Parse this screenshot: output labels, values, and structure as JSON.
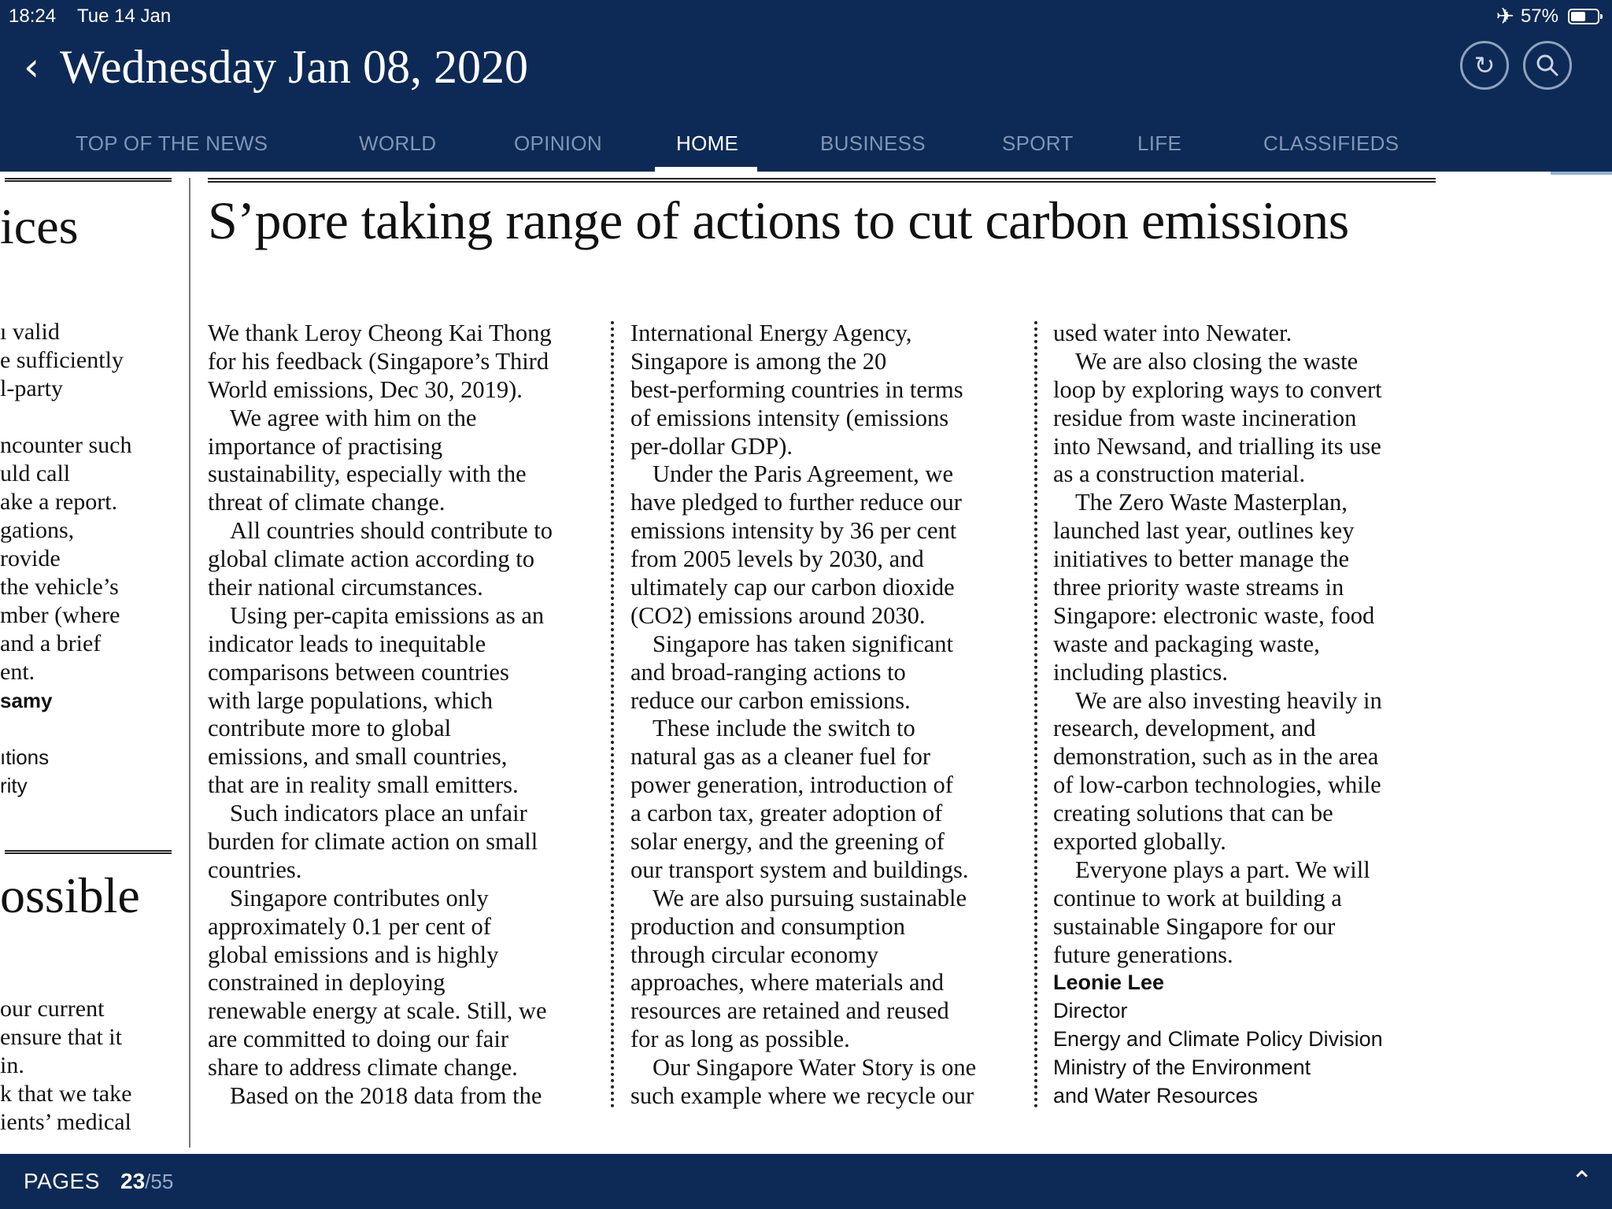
{
  "status_bar": {
    "time": "18:24",
    "date": "Tue 14 Jan",
    "battery_percent": "57%",
    "battery_level": 0.57,
    "airplane_icon": "airplane-icon"
  },
  "header": {
    "back_icon": "chevron-left-icon",
    "edition_date": "Wednesday Jan 08, 2020",
    "refresh_icon": "refresh-icon",
    "search_icon": "search-icon",
    "background_color": "#0d2a57"
  },
  "tabs": [
    {
      "label": "TOP OF THE NEWS",
      "active": false
    },
    {
      "label": "WORLD",
      "active": false
    },
    {
      "label": "OPINION",
      "active": false
    },
    {
      "label": "HOME",
      "active": true
    },
    {
      "label": "BUSINESS",
      "active": false
    },
    {
      "label": "SPORT",
      "active": false
    },
    {
      "label": "LIFE",
      "active": false
    },
    {
      "label": "CLASSIFIEDS",
      "active": false
    }
  ],
  "left_article": {
    "headline_top": "ices",
    "lines_top": [
      "ı valid",
      "e sufficiently",
      "l-party",
      "",
      "ncounter such",
      "uld call",
      "ake a report.",
      "gations,",
      "rovide",
      " the vehicle’s",
      "mber (where",
      " and a brief",
      "ent."
    ],
    "byline_name": "samy",
    "byline_lines": [
      "",
      "ıtions",
      "rity"
    ],
    "headline_bottom": "ossible",
    "lines_bottom": [
      "our current",
      "ensure that it",
      " in.",
      "k that we take",
      "ients’ medical"
    ]
  },
  "article": {
    "headline": "S’pore taking range of actions to cut carbon emissions",
    "columns": [
      [
        {
          "text": "We thank Leroy Cheong Kai Thong",
          "indent": false
        },
        {
          "text": "for his feedback (Singapore’s Third",
          "indent": false
        },
        {
          "text": "World emissions, Dec 30, 2019).",
          "indent": false
        },
        {
          "text": "We agree with him on the",
          "indent": true
        },
        {
          "text": "importance of practising",
          "indent": false
        },
        {
          "text": "sustainability, especially with the",
          "indent": false
        },
        {
          "text": "threat of climate change.",
          "indent": false
        },
        {
          "text": "All countries should contribute to",
          "indent": true
        },
        {
          "text": "global climate action according to",
          "indent": false
        },
        {
          "text": "their national circumstances.",
          "indent": false
        },
        {
          "text": "Using per-capita emissions as an",
          "indent": true
        },
        {
          "text": "indicator leads to inequitable",
          "indent": false
        },
        {
          "text": "comparisons between countries",
          "indent": false
        },
        {
          "text": "with large populations, which",
          "indent": false
        },
        {
          "text": "contribute more to global",
          "indent": false
        },
        {
          "text": "emissions, and small countries,",
          "indent": false
        },
        {
          "text": "that are in reality small emitters.",
          "indent": false
        },
        {
          "text": "Such indicators place an unfair",
          "indent": true
        },
        {
          "text": "burden for climate action on small",
          "indent": false
        },
        {
          "text": "countries.",
          "indent": false
        },
        {
          "text": "Singapore contributes only",
          "indent": true
        },
        {
          "text": "approximately 0.1 per cent of",
          "indent": false
        },
        {
          "text": "global emissions and is highly",
          "indent": false
        },
        {
          "text": "constrained in deploying",
          "indent": false
        },
        {
          "text": "renewable energy at scale. Still, we",
          "indent": false
        },
        {
          "text": "are committed to doing our fair",
          "indent": false
        },
        {
          "text": "share to address climate change.",
          "indent": false
        },
        {
          "text": "Based on the 2018 data from the",
          "indent": true
        }
      ],
      [
        {
          "text": "International Energy Agency,",
          "indent": false
        },
        {
          "text": "Singapore is among the 20",
          "indent": false
        },
        {
          "text": "best-performing countries in terms",
          "indent": false
        },
        {
          "text": "of emissions intensity (emissions",
          "indent": false
        },
        {
          "text": "per-dollar GDP).",
          "indent": false
        },
        {
          "text": "Under the Paris Agreement, we",
          "indent": true
        },
        {
          "text": "have pledged to further reduce our",
          "indent": false
        },
        {
          "text": "emissions intensity by 36 per cent",
          "indent": false
        },
        {
          "text": "from 2005 levels by 2030, and",
          "indent": false
        },
        {
          "text": "ultimately cap our carbon dioxide",
          "indent": false
        },
        {
          "text": "(CO2) emissions around 2030.",
          "indent": false
        },
        {
          "text": "Singapore has taken significant",
          "indent": true
        },
        {
          "text": "and broad-ranging actions to",
          "indent": false
        },
        {
          "text": "reduce our carbon emissions.",
          "indent": false
        },
        {
          "text": "These include the switch to",
          "indent": true
        },
        {
          "text": "natural gas as a cleaner fuel for",
          "indent": false
        },
        {
          "text": "power generation, introduction of",
          "indent": false
        },
        {
          "text": "a carbon tax, greater adoption of",
          "indent": false
        },
        {
          "text": "solar energy, and the greening of",
          "indent": false
        },
        {
          "text": "our transport system and buildings.",
          "indent": false
        },
        {
          "text": "We are also pursuing sustainable",
          "indent": true
        },
        {
          "text": "production and consumption",
          "indent": false
        },
        {
          "text": "through circular economy",
          "indent": false
        },
        {
          "text": "approaches, where materials and",
          "indent": false
        },
        {
          "text": "resources are retained and reused",
          "indent": false
        },
        {
          "text": "for as long as possible.",
          "indent": false
        },
        {
          "text": "Our Singapore Water Story is one",
          "indent": true
        },
        {
          "text": "such example where we recycle our",
          "indent": false
        }
      ],
      [
        {
          "text": "used water into Newater.",
          "indent": false
        },
        {
          "text": "We are also closing the waste",
          "indent": true
        },
        {
          "text": "loop by exploring ways to convert",
          "indent": false
        },
        {
          "text": "residue from waste incineration",
          "indent": false
        },
        {
          "text": "into Newsand, and trialling its use",
          "indent": false
        },
        {
          "text": "as a construction material.",
          "indent": false
        },
        {
          "text": "The Zero Waste Masterplan,",
          "indent": true
        },
        {
          "text": "launched last year, outlines key",
          "indent": false
        },
        {
          "text": "initiatives to better manage the",
          "indent": false
        },
        {
          "text": "three priority waste streams in",
          "indent": false
        },
        {
          "text": "Singapore: electronic waste, food",
          "indent": false
        },
        {
          "text": "waste and packaging waste,",
          "indent": false
        },
        {
          "text": "including plastics.",
          "indent": false
        },
        {
          "text": "We are also investing heavily in",
          "indent": true
        },
        {
          "text": "research, development, and",
          "indent": false
        },
        {
          "text": "demonstration, such as in the area",
          "indent": false
        },
        {
          "text": "of low-carbon technologies, while",
          "indent": false
        },
        {
          "text": "creating solutions that can be",
          "indent": false
        },
        {
          "text": "exported globally.",
          "indent": false
        },
        {
          "text": "Everyone plays a part. We will",
          "indent": true
        },
        {
          "text": "continue to work at building a",
          "indent": false
        },
        {
          "text": "sustainable Singapore for our",
          "indent": false
        },
        {
          "text": "future generations.",
          "indent": false
        }
      ]
    ],
    "signature": {
      "name": "Leonie Lee",
      "title": "Director",
      "division": "Energy and Climate Policy Division",
      "ministry_line1": "Ministry of the Environment",
      "ministry_line2": "and Water Resources"
    }
  },
  "footer": {
    "pages_label": "PAGES",
    "current_page": "23",
    "total_pages": "/55",
    "expand_icon": "chevron-up-icon"
  }
}
